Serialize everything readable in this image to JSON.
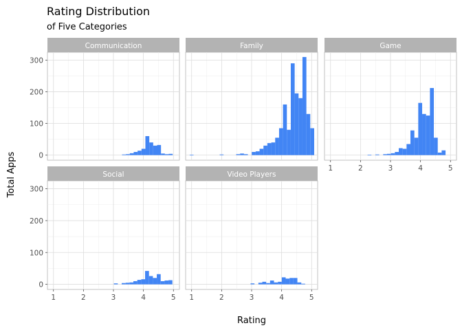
{
  "chart_data": {
    "type": "bar",
    "title": "Rating Distribution",
    "subtitle": "of Five Categories",
    "xlabel": "Rating",
    "ylabel": "Total Apps",
    "xlim": [
      0.8,
      5.2
    ],
    "ylim": [
      -16,
      325
    ],
    "x_ticks": [
      1,
      2,
      3,
      4,
      5
    ],
    "y_ticks": [
      0,
      100,
      200,
      300
    ],
    "bar_color": "#4285f4",
    "bin_width": 0.13,
    "facets": [
      {
        "name": "Communication",
        "bins": [
          {
            "x": 3.35,
            "y": 2
          },
          {
            "x": 3.48,
            "y": 3
          },
          {
            "x": 3.61,
            "y": 6
          },
          {
            "x": 3.74,
            "y": 10
          },
          {
            "x": 3.87,
            "y": 14
          },
          {
            "x": 4.0,
            "y": 20
          },
          {
            "x": 4.13,
            "y": 60
          },
          {
            "x": 4.26,
            "y": 40
          },
          {
            "x": 4.39,
            "y": 30
          },
          {
            "x": 4.52,
            "y": 32
          },
          {
            "x": 4.65,
            "y": 5
          },
          {
            "x": 4.78,
            "y": 3
          },
          {
            "x": 4.91,
            "y": 4
          }
        ]
      },
      {
        "name": "Family",
        "bins": [
          {
            "x": 1.0,
            "y": 1
          },
          {
            "x": 2.0,
            "y": 2
          },
          {
            "x": 2.55,
            "y": 3
          },
          {
            "x": 2.68,
            "y": 5
          },
          {
            "x": 2.81,
            "y": 3
          },
          {
            "x": 3.07,
            "y": 10
          },
          {
            "x": 3.2,
            "y": 12
          },
          {
            "x": 3.33,
            "y": 20
          },
          {
            "x": 3.46,
            "y": 30
          },
          {
            "x": 3.59,
            "y": 38
          },
          {
            "x": 3.72,
            "y": 40
          },
          {
            "x": 3.85,
            "y": 55
          },
          {
            "x": 3.98,
            "y": 85
          },
          {
            "x": 4.11,
            "y": 160
          },
          {
            "x": 4.24,
            "y": 80
          },
          {
            "x": 4.37,
            "y": 290
          },
          {
            "x": 4.5,
            "y": 195
          },
          {
            "x": 4.63,
            "y": 180
          },
          {
            "x": 4.76,
            "y": 310
          },
          {
            "x": 4.89,
            "y": 130
          },
          {
            "x": 5.02,
            "y": 85
          }
        ]
      },
      {
        "name": "Game",
        "bins": [
          {
            "x": 2.3,
            "y": 1
          },
          {
            "x": 2.56,
            "y": 2
          },
          {
            "x": 2.82,
            "y": 3
          },
          {
            "x": 2.95,
            "y": 4
          },
          {
            "x": 3.08,
            "y": 6
          },
          {
            "x": 3.21,
            "y": 10
          },
          {
            "x": 3.34,
            "y": 22
          },
          {
            "x": 3.47,
            "y": 20
          },
          {
            "x": 3.6,
            "y": 35
          },
          {
            "x": 3.73,
            "y": 78
          },
          {
            "x": 3.86,
            "y": 55
          },
          {
            "x": 3.99,
            "y": 165
          },
          {
            "x": 4.12,
            "y": 130
          },
          {
            "x": 4.25,
            "y": 125
          },
          {
            "x": 4.38,
            "y": 212
          },
          {
            "x": 4.51,
            "y": 55
          },
          {
            "x": 4.64,
            "y": 8
          },
          {
            "x": 4.77,
            "y": 15
          }
        ]
      },
      {
        "name": "Social",
        "bins": [
          {
            "x": 3.08,
            "y": 3
          },
          {
            "x": 3.34,
            "y": 4
          },
          {
            "x": 3.47,
            "y": 5
          },
          {
            "x": 3.6,
            "y": 6
          },
          {
            "x": 3.73,
            "y": 10
          },
          {
            "x": 3.86,
            "y": 14
          },
          {
            "x": 3.99,
            "y": 16
          },
          {
            "x": 4.12,
            "y": 42
          },
          {
            "x": 4.25,
            "y": 26
          },
          {
            "x": 4.38,
            "y": 20
          },
          {
            "x": 4.51,
            "y": 32
          },
          {
            "x": 4.64,
            "y": 10
          },
          {
            "x": 4.77,
            "y": 12
          },
          {
            "x": 4.9,
            "y": 13
          }
        ]
      },
      {
        "name": "Video Players",
        "bins": [
          {
            "x": 3.03,
            "y": 3
          },
          {
            "x": 3.29,
            "y": 5
          },
          {
            "x": 3.42,
            "y": 8
          },
          {
            "x": 3.55,
            "y": 4
          },
          {
            "x": 3.68,
            "y": 12
          },
          {
            "x": 3.81,
            "y": 6
          },
          {
            "x": 3.94,
            "y": 8
          },
          {
            "x": 4.07,
            "y": 22
          },
          {
            "x": 4.2,
            "y": 18
          },
          {
            "x": 4.33,
            "y": 20
          },
          {
            "x": 4.46,
            "y": 20
          },
          {
            "x": 4.59,
            "y": 6
          },
          {
            "x": 4.72,
            "y": 2
          }
        ]
      }
    ]
  }
}
